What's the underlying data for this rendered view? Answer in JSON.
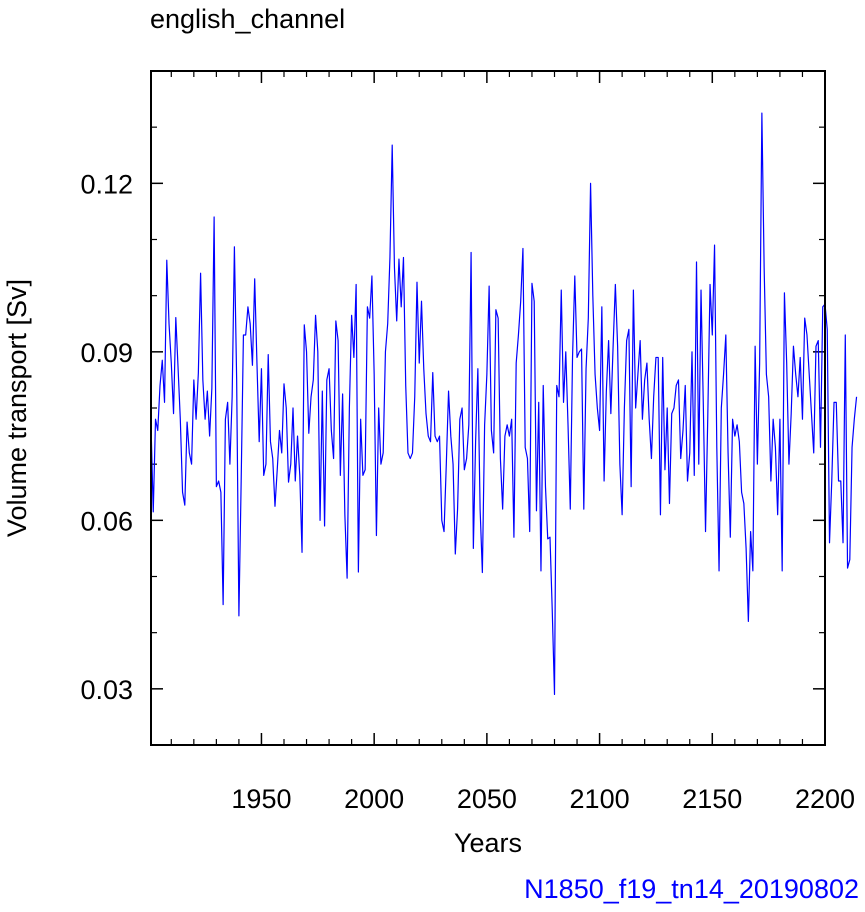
{
  "chart_data": {
    "type": "line",
    "title": "english_channel",
    "xlabel": "Years",
    "ylabel": "Volume transport [Sv]",
    "footer": "N1850_f19_tn14_20190802",
    "xlim": [
      1901,
      2200
    ],
    "ylim": [
      0.02,
      0.14
    ],
    "xticks": [
      1950,
      2000,
      2050,
      2100,
      2150,
      2200
    ],
    "xtick_labels": [
      "1950",
      "2000",
      "2050",
      "2100",
      "2150",
      "2200"
    ],
    "yticks": [
      0.03,
      0.06,
      0.09,
      0.12
    ],
    "ytick_labels": [
      "0.03",
      "0.06",
      "0.09",
      "0.12"
    ],
    "colors": {
      "line": "#0000ff",
      "footer": "#0000ff",
      "axes": "#000000"
    },
    "series": [
      {
        "x_start": 1901,
        "x_step": 1,
        "values": [
          0.077,
          0.0615,
          0.078,
          0.076,
          0.084,
          0.0885,
          0.081,
          0.1063,
          0.095,
          0.088,
          0.079,
          0.0961,
          0.0872,
          0.078,
          0.065,
          0.0627,
          0.0775,
          0.072,
          0.07,
          0.085,
          0.078,
          0.0862,
          0.104,
          0.085,
          0.078,
          0.083,
          0.075,
          0.0835,
          0.114,
          0.066,
          0.067,
          0.065,
          0.045,
          0.078,
          0.081,
          0.07,
          0.082,
          0.1087,
          0.085,
          0.043,
          0.067,
          0.093,
          0.093,
          0.098,
          0.095,
          0.0876,
          0.103,
          0.088,
          0.074,
          0.087,
          0.068,
          0.07,
          0.0895,
          0.074,
          0.071,
          0.0625,
          0.069,
          0.076,
          0.072,
          0.0843,
          0.08,
          0.0668,
          0.07,
          0.08,
          0.067,
          0.075,
          0.068,
          0.0543,
          0.0948,
          0.09,
          0.0755,
          0.082,
          0.085,
          0.0965,
          0.09,
          0.06,
          0.083,
          0.059,
          0.085,
          0.087,
          0.076,
          0.071,
          0.0955,
          0.092,
          0.068,
          0.0825,
          0.061,
          0.0497,
          0.08,
          0.0965,
          0.089,
          0.102,
          0.0508,
          0.078,
          0.068,
          0.069,
          0.098,
          0.096,
          0.1035,
          0.086,
          0.0573,
          0.08,
          0.07,
          0.072,
          0.09,
          0.095,
          0.1068,
          0.1268,
          0.105,
          0.0955,
          0.1065,
          0.098,
          0.1068,
          0.084,
          0.072,
          0.071,
          0.072,
          0.082,
          0.1024,
          0.088,
          0.099,
          0.087,
          0.079,
          0.075,
          0.074,
          0.0863,
          0.075,
          0.074,
          0.075,
          0.06,
          0.058,
          0.07,
          0.083,
          0.075,
          0.07,
          0.054,
          0.062,
          0.078,
          0.08,
          0.069,
          0.071,
          0.077,
          0.1077,
          0.055,
          0.074,
          0.087,
          0.062,
          0.0507,
          0.077,
          0.086,
          0.1017,
          0.076,
          0.072,
          0.0975,
          0.096,
          0.071,
          0.062,
          0.075,
          0.077,
          0.075,
          0.078,
          0.057,
          0.088,
          0.093,
          0.099,
          0.1084,
          0.073,
          0.071,
          0.058,
          0.1022,
          0.099,
          0.0617,
          0.081,
          0.051,
          0.084,
          0.066,
          0.0567,
          0.057,
          0.044,
          0.029,
          0.084,
          0.082,
          0.101,
          0.081,
          0.09,
          0.077,
          0.062,
          0.089,
          0.1035,
          0.089,
          0.09,
          0.0905,
          0.062,
          0.087,
          0.096,
          0.12,
          0.1,
          0.086,
          0.08,
          0.076,
          0.098,
          0.067,
          0.083,
          0.092,
          0.079,
          0.091,
          0.102,
          0.091,
          0.07,
          0.061,
          0.08,
          0.092,
          0.094,
          0.066,
          0.101,
          0.08,
          0.086,
          0.092,
          0.078,
          0.085,
          0.088,
          0.078,
          0.071,
          0.082,
          0.089,
          0.089,
          0.061,
          0.089,
          0.069,
          0.08,
          0.063,
          0.079,
          0.08,
          0.084,
          0.085,
          0.071,
          0.076,
          0.084,
          0.067,
          0.072,
          0.09,
          0.068,
          0.106,
          0.07,
          0.101,
          0.081,
          0.058,
          0.0785,
          0.102,
          0.093,
          0.109,
          0.073,
          0.051,
          0.08,
          0.086,
          0.093,
          0.072,
          0.057,
          0.078,
          0.075,
          0.077,
          0.074,
          0.065,
          0.063,
          0.055,
          0.042,
          0.058,
          0.051,
          0.091,
          0.07,
          0.088,
          0.1325,
          0.105,
          0.086,
          0.082,
          0.067,
          0.078,
          0.073,
          0.061,
          0.078,
          0.051,
          0.1005,
          0.088,
          0.07,
          0.079,
          0.091,
          0.086,
          0.082,
          0.089,
          0.078,
          0.096,
          0.093,
          0.086,
          0.079,
          0.072,
          0.091,
          0.092,
          0.073,
          0.098,
          0.0985,
          0.094,
          0.056,
          0.067,
          0.081,
          0.081,
          0.067,
          0.067,
          0.056,
          0.093,
          0.0515,
          0.053,
          0.073,
          0.078,
          0.082
        ]
      }
    ]
  }
}
